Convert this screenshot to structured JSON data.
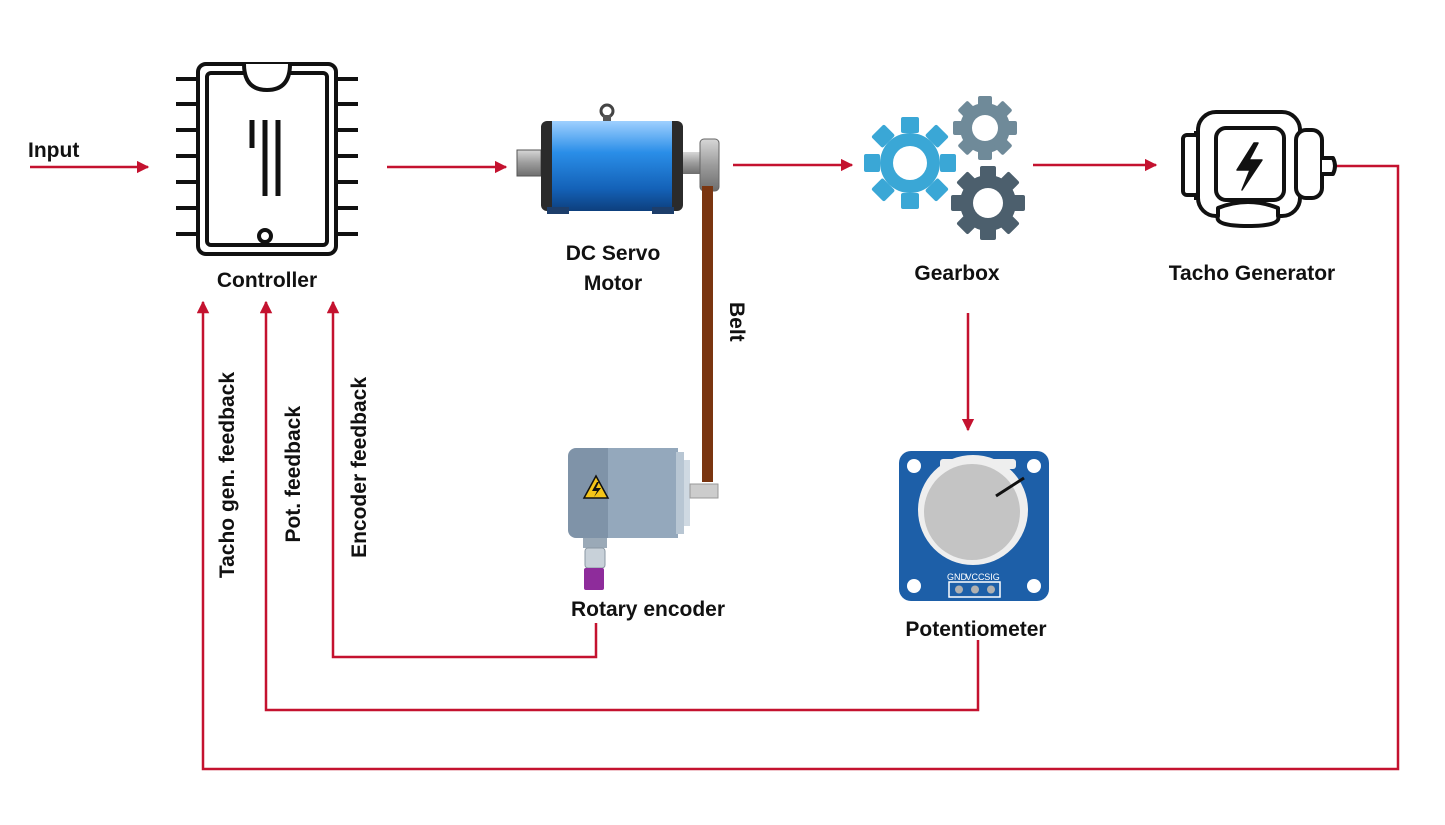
{
  "labels": {
    "input": "Input",
    "controller": "Controller",
    "motor_line1": "DC Servo",
    "motor_line2": "Motor",
    "gearbox": "Gearbox",
    "tacho_generator": "Tacho Generator",
    "belt": "Belt",
    "rotary_encoder": "Rotary encoder",
    "potentiometer": "Potentiometer",
    "tacho_feedback": "Tacho gen. feedback",
    "pot_feedback": "Pot. feedback",
    "encoder_feedback": "Encoder feedback",
    "pin_gnd": "GND",
    "pin_vcc": "VCC",
    "pin_sig": "SIG"
  },
  "colors": {
    "arrow": "#c4122f",
    "outline": "#111111",
    "motor_blue": "#1f7fd6",
    "gear_light": "#3aa7d6",
    "gear_mid": "#6f8a99",
    "gear_dark": "#4c5f6d",
    "belt": "#7a3510",
    "pcb_blue": "#1d5fa8",
    "encoder_body": "#8ea3b8",
    "cable": "#8e2c9b"
  },
  "icons": {
    "controller": "ic-chip-icon",
    "motor": "dc-motor-icon",
    "gearbox": "gears-icon",
    "tacho": "generator-icon",
    "encoder": "rotary-encoder-icon",
    "potentiometer": "potentiometer-module-icon"
  }
}
